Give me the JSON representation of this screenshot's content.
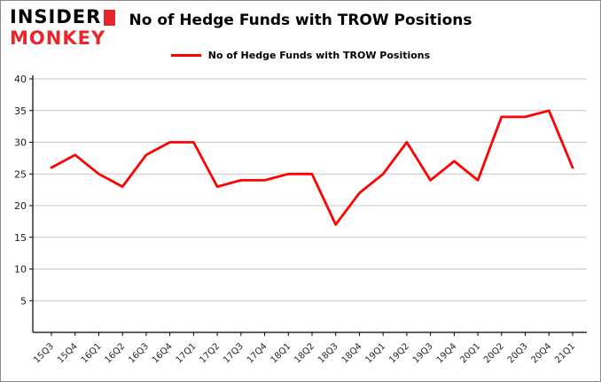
{
  "logo": {
    "line1": "INSIDER",
    "line2": "MONKEY"
  },
  "header": {
    "title": "No of Hedge Funds with TROW Positions"
  },
  "legend": {
    "label": "No of Hedge Funds with TROW Positions",
    "color": "#fe0101"
  },
  "chart_data": {
    "type": "line",
    "title": "No of Hedge Funds with TROW Positions",
    "categories": [
      "15Q3",
      "15Q4",
      "16Q1",
      "16Q2",
      "16Q3",
      "16Q4",
      "17Q1",
      "17Q2",
      "17Q3",
      "17Q4",
      "18Q1",
      "18Q2",
      "18Q3",
      "18Q4",
      "19Q1",
      "19Q2",
      "19Q3",
      "19Q4",
      "20Q1",
      "20Q2",
      "20Q3",
      "20Q4",
      "21Q1"
    ],
    "values": [
      26,
      28,
      25,
      23,
      28,
      30,
      30,
      23,
      24,
      24,
      25,
      25,
      17,
      22,
      25,
      30,
      24,
      27,
      24,
      34,
      34,
      35,
      26
    ],
    "xlabel": "",
    "ylabel": "",
    "ylim": [
      0,
      40
    ],
    "yticks": [
      5,
      10,
      15,
      20,
      25,
      30,
      35,
      40
    ],
    "grid": true,
    "line_color": "#fe0101",
    "legend_position": "top-center"
  }
}
